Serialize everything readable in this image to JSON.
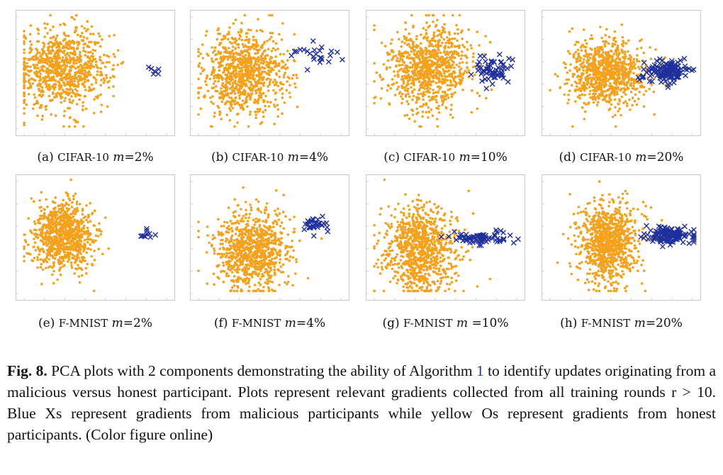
{
  "panels": [
    {
      "id": "a",
      "prefix": "(a) ",
      "dataset": "CIFAR-10",
      "m_label": "m",
      "value": "=2%",
      "chart_data": {
        "type": "scatter",
        "xlabel": "",
        "ylabel": "",
        "grid": false,
        "legend": "none",
        "series": [
          {
            "marker": "o",
            "color": "#f5a11c",
            "count": 900,
            "center": [
              -0.45,
              0.05
            ],
            "spread": [
              0.32,
              0.35
            ]
          },
          {
            "marker": "x",
            "color": "#1f2f9c",
            "count": 6,
            "center": [
              0.82,
              0.0
            ],
            "spread": [
              0.05,
              0.06
            ]
          }
        ]
      }
    },
    {
      "id": "b",
      "prefix": "(b) ",
      "dataset": "CIFAR-10",
      "m_label": "m",
      "value": "=4%",
      "chart_data": {
        "type": "scatter",
        "xlabel": "",
        "ylabel": "",
        "grid": false,
        "legend": "none",
        "series": [
          {
            "marker": "o",
            "color": "#f5a11c",
            "count": 900,
            "center": [
              -0.35,
              -0.05
            ],
            "spread": [
              0.28,
              0.36
            ]
          },
          {
            "marker": "x",
            "color": "#1f2f9c",
            "count": 24,
            "center": [
              0.62,
              0.3
            ],
            "spread": [
              0.15,
              0.1
            ]
          }
        ]
      }
    },
    {
      "id": "c",
      "prefix": "(c) ",
      "dataset": "CIFAR-10",
      "m_label": "m",
      "value": "=10%",
      "chart_data": {
        "type": "scatter",
        "xlabel": "",
        "ylabel": "",
        "grid": false,
        "legend": "none",
        "series": [
          {
            "marker": "o",
            "color": "#f5a11c",
            "count": 900,
            "center": [
              -0.25,
              0.05
            ],
            "spread": [
              0.3,
              0.38
            ]
          },
          {
            "marker": "x",
            "color": "#1f2f9c",
            "count": 60,
            "center": [
              0.65,
              0.0
            ],
            "spread": [
              0.14,
              0.12
            ]
          }
        ]
      }
    },
    {
      "id": "d",
      "prefix": "(d) ",
      "dataset": "CIFAR-10",
      "m_label": "m",
      "value": "=20%",
      "chart_data": {
        "type": "scatter",
        "xlabel": "",
        "ylabel": "",
        "grid": false,
        "legend": "none",
        "series": [
          {
            "marker": "o",
            "color": "#f5a11c",
            "count": 900,
            "center": [
              -0.2,
              -0.05
            ],
            "spread": [
              0.26,
              0.3
            ]
          },
          {
            "marker": "x",
            "color": "#1f2f9c",
            "count": 140,
            "center": [
              0.62,
              0.0
            ],
            "spread": [
              0.17,
              0.09
            ]
          }
        ]
      }
    },
    {
      "id": "e",
      "prefix": "(e) ",
      "dataset": "F-MNIST",
      "m_label": "m",
      "value": "=2%",
      "chart_data": {
        "type": "scatter",
        "xlabel": "",
        "ylabel": "",
        "grid": false,
        "legend": "none",
        "series": [
          {
            "marker": "o",
            "color": "#f5a11c",
            "count": 900,
            "center": [
              -0.45,
              0.0
            ],
            "spread": [
              0.22,
              0.3
            ]
          },
          {
            "marker": "x",
            "color": "#1f2f9c",
            "count": 10,
            "center": [
              0.72,
              0.05
            ],
            "spread": [
              0.05,
              0.08
            ]
          }
        ]
      }
    },
    {
      "id": "f",
      "prefix": "(f) ",
      "dataset": "F-MNIST",
      "m_label": "m",
      "value": "=4%",
      "chart_data": {
        "type": "scatter",
        "xlabel": "",
        "ylabel": "",
        "grid": false,
        "legend": "none",
        "series": [
          {
            "marker": "o",
            "color": "#f5a11c",
            "count": 900,
            "center": [
              -0.25,
              -0.25
            ],
            "spread": [
              0.25,
              0.34
            ]
          },
          {
            "marker": "x",
            "color": "#1f2f9c",
            "count": 30,
            "center": [
              0.62,
              0.2
            ],
            "spread": [
              0.09,
              0.07
            ]
          }
        ]
      }
    },
    {
      "id": "g",
      "prefix": "(g) ",
      "dataset": "F-MNIST",
      "m_label": "m",
      "value": " =10%",
      "chart_data": {
        "type": "scatter",
        "xlabel": "",
        "ylabel": "",
        "grid": false,
        "legend": "none",
        "series": [
          {
            "marker": "o",
            "color": "#f5a11c",
            "count": 900,
            "center": [
              -0.35,
              -0.25
            ],
            "spread": [
              0.25,
              0.38
            ]
          },
          {
            "marker": "x",
            "color": "#1f2f9c",
            "count": 70,
            "center": [
              0.52,
              -0.05
            ],
            "spread": [
              0.18,
              0.06
            ]
          }
        ]
      }
    },
    {
      "id": "h",
      "prefix": "(h) ",
      "dataset": "F-MNIST",
      "m_label": "m",
      "value": "=20%",
      "chart_data": {
        "type": "scatter",
        "xlabel": "",
        "ylabel": "",
        "grid": false,
        "legend": "none",
        "series": [
          {
            "marker": "o",
            "color": "#f5a11c",
            "count": 900,
            "center": [
              -0.2,
              -0.15
            ],
            "spread": [
              0.2,
              0.35
            ]
          },
          {
            "marker": "x",
            "color": "#1f2f9c",
            "count": 130,
            "center": [
              0.65,
              0.0
            ],
            "spread": [
              0.17,
              0.07
            ]
          }
        ]
      }
    }
  ],
  "caption": {
    "label": "Fig. 8.",
    "text_before": " PCA plots with 2 components demonstrating the ability of Algorithm ",
    "ref": "1",
    "text_after": " to identify updates originating from a malicious versus honest participant. Plots represent relevant gradients collected from all training rounds r > 10. Blue Xs represent gradients from malicious participants while yellow Os represent gradients from honest participants. (Color figure online)"
  },
  "colors": {
    "honest": "#f5a11c",
    "malicious": "#1f2f9c"
  }
}
